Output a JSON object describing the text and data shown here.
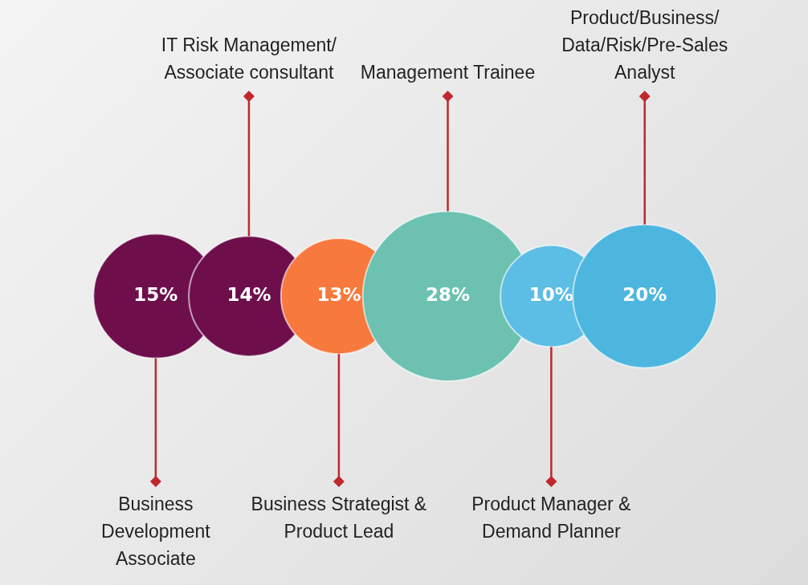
{
  "chart_data": {
    "type": "other",
    "categories": [
      "Business Development Associate",
      "IT Risk Management/ Associate consultant",
      "Business Strategist & Product Lead",
      "Management Trainee",
      "Product Manager & Demand Planner",
      "Product/Business/Data/Risk/Pre-Sales Analyst"
    ],
    "values": [
      15,
      14,
      13,
      28,
      10,
      20
    ],
    "value_labels": [
      "15%",
      "14%",
      "13%",
      "28%",
      "10%",
      "20%"
    ],
    "colors": [
      "#6e0f4c",
      "#6e0f4c",
      "#f8793d",
      "#6cc1b1",
      "#5cbde5",
      "#4db6de"
    ]
  }
}
